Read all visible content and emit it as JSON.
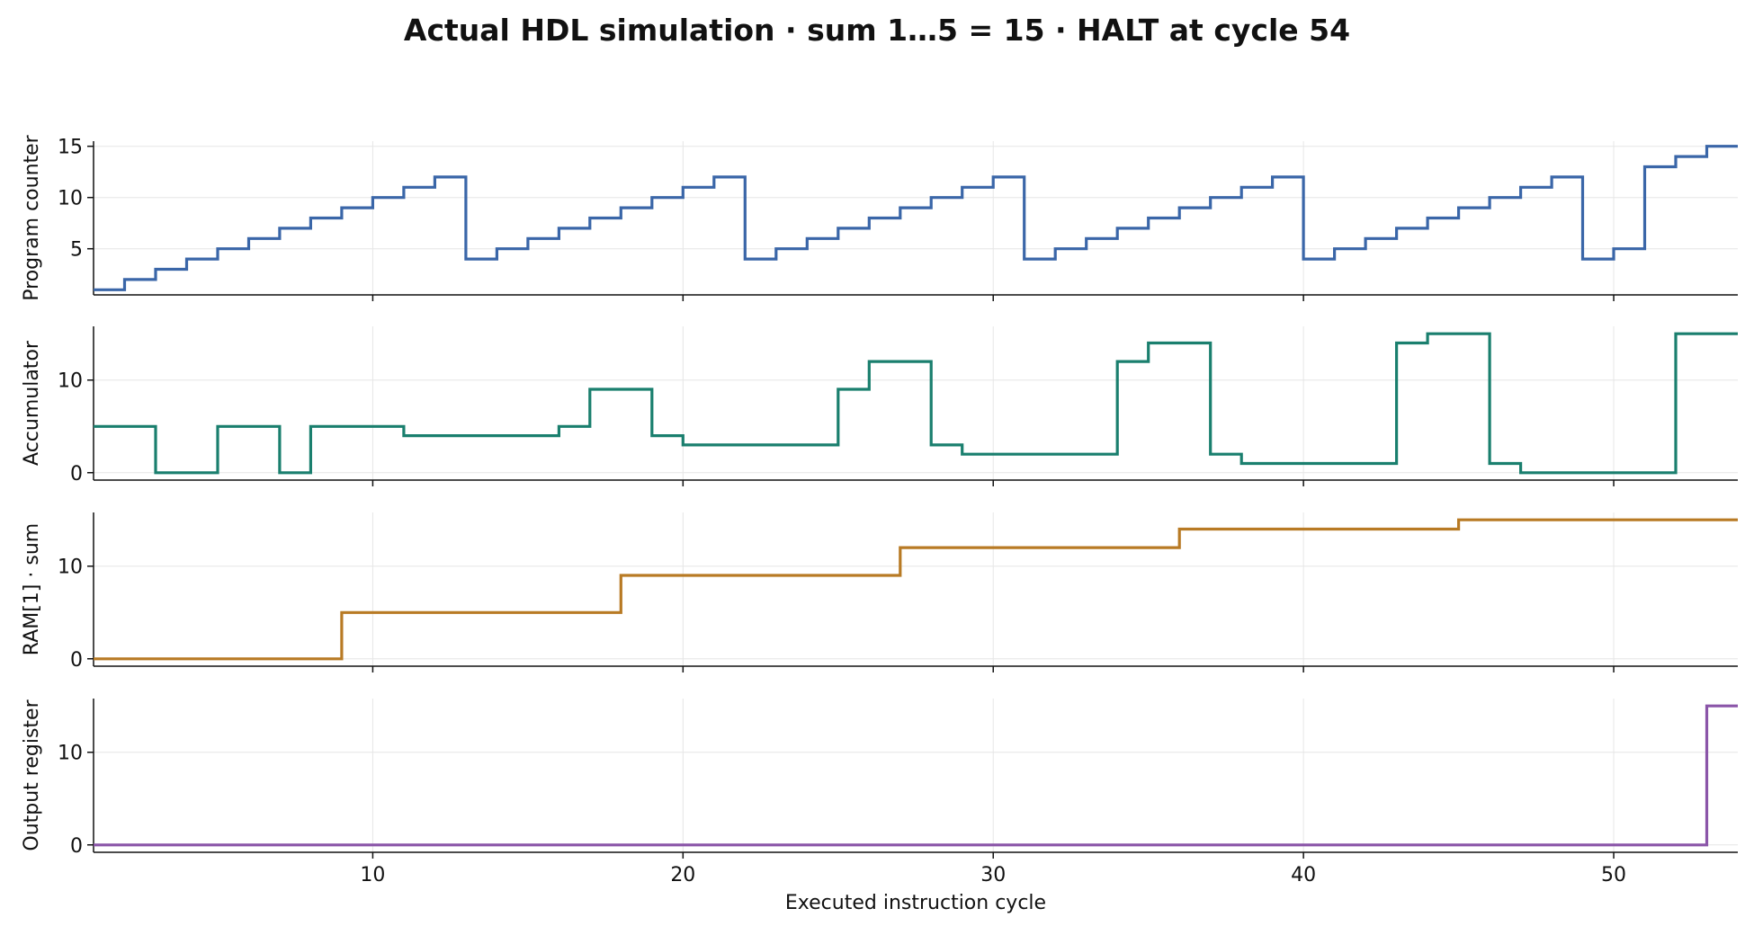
{
  "chart_data": {
    "type": "line",
    "title": "Actual HDL simulation · sum 1…5 = 15 · HALT at cycle 54",
    "xlabel": "Executed instruction cycle",
    "xlim": [
      1,
      54
    ],
    "x_ticks": [
      10,
      20,
      30,
      40,
      50
    ],
    "step": "post",
    "grid": true,
    "series": [
      {
        "name": "Program counter",
        "ylabel": "Program counter",
        "color": "#3a66a8",
        "ylim": [
          0.5,
          15.5
        ],
        "y_ticks": [
          5,
          10,
          15
        ],
        "x": [
          1,
          2,
          3,
          4,
          5,
          6,
          7,
          8,
          9,
          10,
          11,
          12,
          13,
          14,
          15,
          16,
          17,
          18,
          19,
          20,
          21,
          22,
          23,
          24,
          25,
          26,
          27,
          28,
          29,
          30,
          31,
          32,
          33,
          34,
          35,
          36,
          37,
          38,
          39,
          40,
          41,
          42,
          43,
          44,
          45,
          46,
          47,
          48,
          49,
          50,
          51,
          52,
          53,
          54
        ],
        "values": [
          1,
          2,
          3,
          4,
          5,
          6,
          7,
          8,
          9,
          10,
          11,
          12,
          4,
          5,
          6,
          7,
          8,
          9,
          10,
          11,
          12,
          4,
          5,
          6,
          7,
          8,
          9,
          10,
          11,
          12,
          4,
          5,
          6,
          7,
          8,
          9,
          10,
          11,
          12,
          4,
          5,
          6,
          7,
          8,
          9,
          10,
          11,
          12,
          4,
          5,
          13,
          14,
          15,
          15
        ]
      },
      {
        "name": "Accumulator",
        "ylabel": "Accumulator",
        "color": "#1a7f6e",
        "ylim": [
          -0.8,
          15.8
        ],
        "y_ticks": [
          0,
          10
        ],
        "x": [
          1,
          2,
          3,
          4,
          5,
          6,
          7,
          8,
          9,
          10,
          11,
          12,
          13,
          14,
          15,
          16,
          17,
          18,
          19,
          20,
          21,
          22,
          23,
          24,
          25,
          26,
          27,
          28,
          29,
          30,
          31,
          32,
          33,
          34,
          35,
          36,
          37,
          38,
          39,
          40,
          41,
          42,
          43,
          44,
          45,
          46,
          47,
          48,
          49,
          50,
          51,
          52,
          53,
          54
        ],
        "values": [
          5,
          5,
          0,
          0,
          5,
          5,
          0,
          5,
          5,
          5,
          4,
          4,
          4,
          4,
          4,
          5,
          9,
          9,
          4,
          3,
          3,
          3,
          3,
          3,
          9,
          12,
          12,
          3,
          2,
          2,
          2,
          2,
          2,
          12,
          14,
          14,
          2,
          1,
          1,
          1,
          1,
          1,
          14,
          15,
          15,
          1,
          0,
          0,
          0,
          0,
          0,
          15,
          15,
          15
        ]
      },
      {
        "name": "RAM[1] · sum",
        "ylabel": "RAM[1] · sum",
        "color": "#b87a24",
        "ylim": [
          -0.8,
          15.8
        ],
        "y_ticks": [
          0,
          10
        ],
        "x": [
          1,
          9,
          18,
          27,
          36,
          45,
          54
        ],
        "values": [
          0,
          5,
          9,
          12,
          14,
          15,
          15
        ]
      },
      {
        "name": "Output register",
        "ylabel": "Output register",
        "color": "#8a55a8",
        "ylim": [
          -0.8,
          15.8
        ],
        "y_ticks": [
          0,
          10
        ],
        "x": [
          1,
          53,
          54
        ],
        "values": [
          0,
          15,
          15
        ]
      }
    ]
  }
}
